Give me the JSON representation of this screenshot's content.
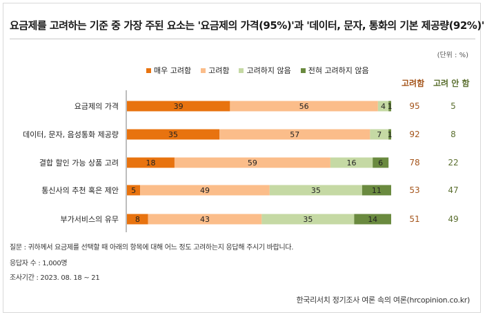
{
  "title": "요금제를 고려하는 기준 중 가장 주된 요소는 '요금제의 가격(95%)'과 '데이터, 문자, 통화의 기본 제공량(92%)'",
  "unit_label": "(단위 : %)",
  "colors": {
    "very": "#e8730f",
    "somewhat": "#fbbd8a",
    "not": "#c5d9a4",
    "never": "#6a8a3f",
    "consider_text": "#a4541a",
    "not_consider_text": "#5a6e2e"
  },
  "column_headers": {
    "consider": "고려함",
    "not_consider": "고려 안 함"
  },
  "chart_data": {
    "type": "bar",
    "orientation": "horizontal",
    "stacked": true,
    "xlim": [
      0,
      100
    ],
    "categories": [
      "요금제의 가격",
      "데이터, 문자, 음성통화 제공량",
      "결합 할인 가능 상품 고려",
      "통신사의 추천 혹은 제안",
      "부가서비스의 유무"
    ],
    "series": [
      {
        "name": "매우 고려함",
        "values": [
          39,
          35,
          18,
          5,
          8
        ]
      },
      {
        "name": "고려함",
        "values": [
          56,
          57,
          59,
          49,
          43
        ]
      },
      {
        "name": "고려하지 않음",
        "values": [
          4,
          7,
          16,
          35,
          35
        ]
      },
      {
        "name": "전혀 고려하지 않음",
        "values": [
          1,
          1,
          6,
          11,
          14
        ]
      }
    ],
    "totals": {
      "consider": [
        95,
        92,
        78,
        53,
        51
      ],
      "not_consider": [
        5,
        8,
        22,
        47,
        49
      ]
    }
  },
  "footer": {
    "question": "질문 :  귀하께서 요금제를 선택할 때 아래의 항목에 대해 어느 정도 고려하는지 응답해 주시기 바랍니다.",
    "respondents": "응답자 수 : 1,000명",
    "period": "조사기간 : 2023. 08. 18 ~ 21"
  },
  "source": "한국리서치 정기조사 여론 속의 여론(hrcopinion.co.kr)"
}
